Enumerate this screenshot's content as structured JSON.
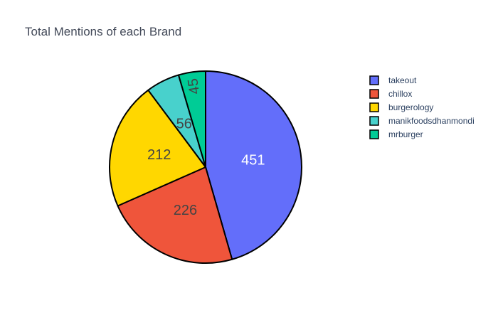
{
  "chart_data": {
    "type": "pie",
    "title": "Total Mentions of each Brand",
    "categories": [
      "takeout",
      "chillox",
      "burgerology",
      "manikfoodsdhanmondi",
      "mrburger"
    ],
    "values": [
      451,
      226,
      212,
      56,
      45
    ],
    "colors": [
      "#636efa",
      "#ef553b",
      "#ffd700",
      "#48d1cc",
      "#00cc96"
    ],
    "label_colors": [
      "#ffffff",
      "#444444",
      "#444444",
      "#444444",
      "#444444"
    ],
    "slice_border_color": "#000000",
    "direction": "clockwise",
    "start_angle": "top",
    "legend_position": "right"
  }
}
